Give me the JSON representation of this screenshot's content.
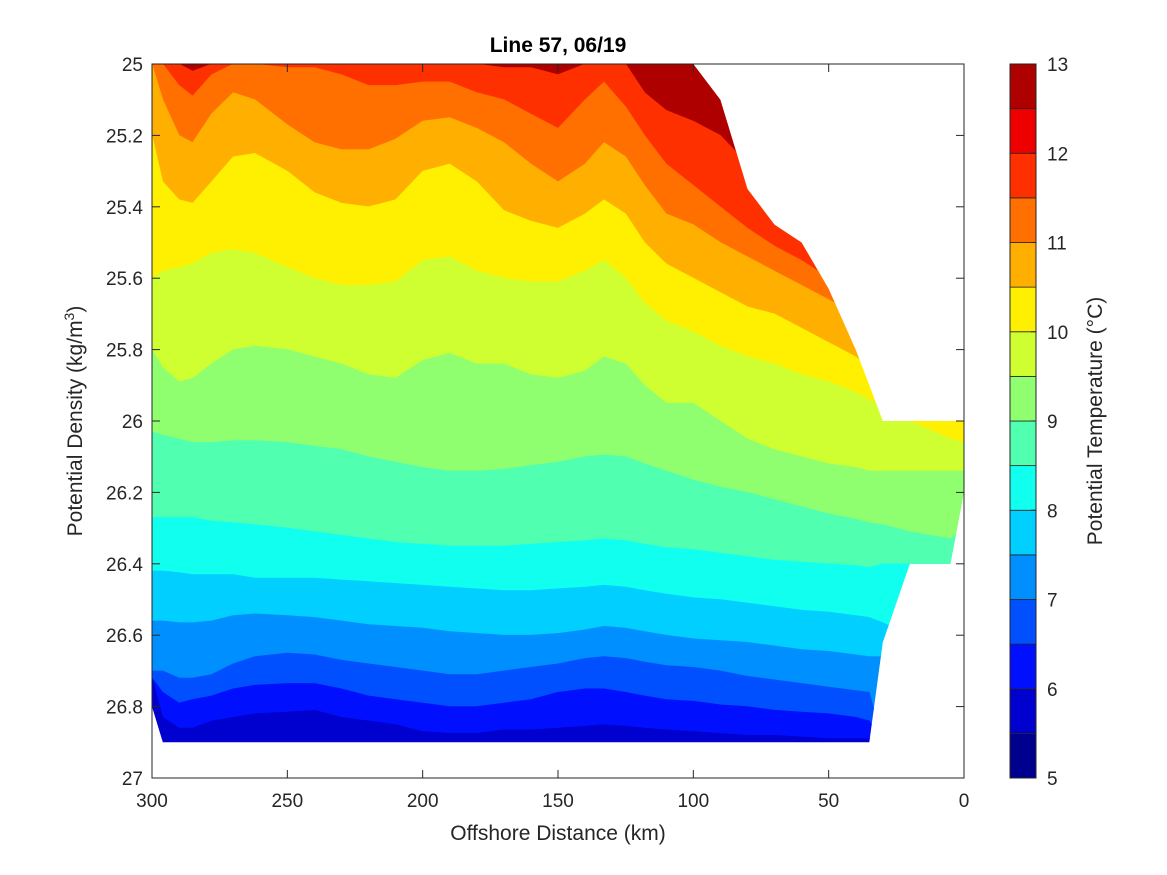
{
  "chart_data": {
    "type": "contour",
    "title": "Line 57, 06/19",
    "xlabel": "Offshore Distance (km)",
    "ylabel": "Potential Density (kg/m",
    "ylabel_sup": "3",
    "ylabel_close": ")",
    "colorbar_label": "Potential Temperature (°C)",
    "xlim": [
      300,
      0
    ],
    "x_reversed": true,
    "ylim": [
      25,
      27
    ],
    "y_reversed": true,
    "xticks": [
      300,
      250,
      200,
      150,
      100,
      50,
      0
    ],
    "xtick_labels": [
      "300",
      "250",
      "200",
      "150",
      "100",
      "50",
      "0"
    ],
    "yticks": [
      25,
      25.2,
      25.4,
      25.6,
      25.8,
      26,
      26.2,
      26.4,
      26.6,
      26.8,
      27
    ],
    "ytick_labels": [
      "25",
      "25.2",
      "25.4",
      "25.6",
      "25.8",
      "26",
      "26.2",
      "26.4",
      "26.6",
      "26.8",
      "27"
    ],
    "colorbar_ticks": [
      5,
      6,
      7,
      8,
      9,
      10,
      11,
      12,
      13
    ],
    "colorbar_tick_labels": [
      "5",
      "6",
      "7",
      "8",
      "9",
      "10",
      "11",
      "12",
      "13"
    ],
    "levels": [
      5,
      5.5,
      6,
      6.5,
      7,
      7.5,
      8,
      8.5,
      9,
      9.5,
      10,
      10.5,
      11,
      11.5,
      12,
      12.5,
      13
    ],
    "level_colors": [
      "#00008f",
      "#0000cf",
      "#0010ff",
      "#0050ff",
      "#008fff",
      "#00cfff",
      "#10ffef",
      "#50ffaf",
      "#8fff70",
      "#cfff30",
      "#ffef00",
      "#ffaf00",
      "#ff7000",
      "#ff3000",
      "#ef0000",
      "#af0000"
    ],
    "colormap": "jet",
    "grid": false,
    "data_columns": {
      "x": [
        300,
        296,
        290,
        285,
        278,
        270,
        262,
        250,
        240,
        230,
        220,
        210,
        200,
        190,
        180,
        170,
        160,
        150,
        140,
        133,
        125,
        118,
        110,
        100,
        90,
        80,
        70,
        60,
        50,
        40,
        35,
        30,
        20,
        5,
        0
      ],
      "top": [
        25.0,
        25.0,
        25.0,
        25.0,
        25.0,
        25.0,
        25.0,
        25.0,
        25.0,
        25.0,
        25.0,
        25.0,
        25.0,
        25.0,
        25.0,
        25.0,
        25.0,
        25.0,
        25.0,
        25.0,
        25.0,
        25.0,
        25.0,
        25.0,
        25.1,
        25.35,
        25.45,
        25.5,
        25.63,
        25.8,
        25.9,
        26.0,
        26.0,
        26.0,
        26.0
      ],
      "bottom": [
        26.8,
        26.9,
        26.9,
        26.9,
        26.9,
        26.9,
        26.9,
        26.9,
        26.9,
        26.9,
        26.9,
        26.9,
        26.9,
        26.9,
        26.9,
        26.9,
        26.9,
        26.9,
        26.9,
        26.9,
        26.9,
        26.9,
        26.9,
        26.9,
        26.9,
        26.9,
        26.9,
        26.9,
        26.9,
        26.9,
        26.9,
        26.62,
        26.4,
        26.4,
        26.2
      ],
      "isotherms": [
        {
          "t": 6.0,
          "sigma": [
            26.72,
            26.83,
            26.86,
            26.86,
            26.84,
            26.83,
            26.82,
            26.815,
            26.81,
            26.83,
            26.84,
            26.85,
            26.87,
            26.875,
            26.875,
            26.865,
            26.865,
            26.86,
            26.855,
            26.85,
            26.855,
            26.86,
            26.865,
            26.87,
            26.875,
            26.88,
            26.88,
            26.885,
            26.89,
            26.89,
            26.89,
            26.9,
            26.9,
            26.9,
            26.9
          ]
        },
        {
          "t": 6.5,
          "sigma": [
            26.72,
            26.76,
            26.79,
            26.78,
            26.77,
            26.75,
            26.74,
            26.735,
            26.735,
            26.75,
            26.77,
            26.78,
            26.79,
            26.8,
            26.8,
            26.79,
            26.78,
            26.76,
            26.75,
            26.75,
            26.76,
            26.77,
            26.78,
            26.785,
            26.795,
            26.8,
            26.81,
            26.815,
            26.82,
            26.83,
            26.84,
            26.9,
            26.9,
            26.9,
            26.9
          ]
        },
        {
          "t": 7.0,
          "sigma": [
            26.7,
            26.7,
            26.72,
            26.72,
            26.71,
            26.68,
            26.66,
            26.65,
            26.655,
            26.67,
            26.68,
            26.69,
            26.7,
            26.71,
            26.71,
            26.7,
            26.69,
            26.68,
            26.665,
            26.66,
            26.665,
            26.675,
            26.685,
            26.69,
            26.7,
            26.715,
            26.725,
            26.735,
            26.745,
            26.755,
            26.76,
            26.9,
            26.9,
            26.9,
            26.9
          ]
        },
        {
          "t": 7.5,
          "sigma": [
            26.56,
            26.56,
            26.565,
            26.565,
            26.56,
            26.545,
            26.54,
            26.545,
            26.55,
            26.56,
            26.57,
            26.575,
            26.58,
            26.59,
            26.595,
            26.6,
            26.6,
            26.595,
            26.585,
            26.575,
            26.58,
            26.59,
            26.6,
            26.61,
            26.615,
            26.62,
            26.63,
            26.64,
            26.645,
            26.655,
            26.66,
            26.66,
            26.9,
            26.9,
            26.9
          ]
        },
        {
          "t": 8.0,
          "sigma": [
            26.42,
            26.42,
            26.425,
            26.43,
            26.43,
            26.43,
            26.44,
            26.44,
            26.44,
            26.445,
            26.45,
            26.455,
            26.46,
            26.465,
            26.47,
            26.475,
            26.475,
            26.47,
            26.465,
            26.46,
            26.465,
            26.475,
            26.485,
            26.495,
            26.5,
            26.51,
            26.52,
            26.53,
            26.535,
            26.545,
            26.55,
            26.565,
            26.6,
            26.9,
            26.9
          ]
        },
        {
          "t": 8.5,
          "sigma": [
            26.27,
            26.27,
            26.27,
            26.27,
            26.28,
            26.285,
            26.29,
            26.3,
            26.31,
            26.32,
            26.33,
            26.34,
            26.345,
            26.35,
            26.35,
            26.35,
            26.345,
            26.34,
            26.335,
            26.33,
            26.335,
            26.345,
            26.355,
            26.36,
            26.37,
            26.38,
            26.39,
            26.395,
            26.4,
            26.405,
            26.41,
            26.4,
            26.4,
            26.4,
            26.4
          ]
        },
        {
          "t": 9.0,
          "sigma": [
            26.03,
            26.04,
            26.05,
            26.06,
            26.06,
            26.055,
            26.055,
            26.06,
            26.07,
            26.08,
            26.1,
            26.115,
            26.13,
            26.14,
            26.14,
            26.135,
            26.125,
            26.115,
            26.1,
            26.095,
            26.1,
            26.12,
            26.14,
            26.165,
            26.185,
            26.2,
            26.22,
            26.24,
            26.26,
            26.275,
            26.285,
            26.29,
            26.31,
            26.33,
            26.3
          ]
        },
        {
          "t": 9.5,
          "sigma": [
            25.8,
            25.85,
            25.89,
            25.88,
            25.84,
            25.8,
            25.79,
            25.8,
            25.82,
            25.84,
            25.87,
            25.88,
            25.83,
            25.81,
            25.84,
            25.84,
            25.87,
            25.88,
            25.86,
            25.82,
            25.84,
            25.9,
            25.95,
            25.95,
            26.0,
            26.05,
            26.08,
            26.1,
            26.12,
            26.13,
            26.14,
            26.14,
            26.14,
            26.14,
            26.14
          ]
        },
        {
          "t": 10.0,
          "sigma": [
            25.6,
            25.58,
            25.57,
            25.56,
            25.53,
            25.52,
            25.53,
            25.57,
            25.6,
            25.62,
            25.62,
            25.61,
            25.55,
            25.54,
            25.58,
            25.6,
            25.61,
            25.61,
            25.58,
            25.55,
            25.6,
            25.67,
            25.72,
            25.75,
            25.79,
            25.82,
            25.84,
            25.87,
            25.89,
            25.92,
            25.94,
            25.96,
            26.0,
            26.05,
            26.06
          ]
        },
        {
          "t": 10.5,
          "sigma": [
            25.2,
            25.33,
            25.38,
            25.39,
            25.33,
            25.26,
            25.25,
            25.3,
            25.36,
            25.39,
            25.4,
            25.38,
            25.3,
            25.28,
            25.33,
            25.41,
            25.44,
            25.46,
            25.42,
            25.38,
            25.42,
            25.5,
            25.56,
            25.6,
            25.64,
            25.68,
            25.7,
            25.74,
            25.78,
            25.82,
            25.85,
            25.9,
            26.0,
            26.0,
            26.0
          ]
        },
        {
          "t": 11.0,
          "sigma": [
            25.0,
            25.1,
            25.2,
            25.22,
            25.14,
            25.08,
            25.1,
            25.17,
            25.22,
            25.24,
            25.24,
            25.21,
            25.16,
            25.15,
            25.18,
            25.22,
            25.28,
            25.33,
            25.28,
            25.22,
            25.26,
            25.34,
            25.42,
            25.45,
            25.5,
            25.54,
            25.58,
            25.62,
            25.66,
            25.7,
            25.72,
            25.9,
            26.0,
            26.0,
            26.0
          ]
        },
        {
          "t": 11.5,
          "sigma": [
            25.0,
            25.0,
            25.06,
            25.09,
            25.03,
            25.0,
            25.0,
            25.01,
            25.01,
            25.03,
            25.06,
            25.06,
            25.05,
            25.05,
            25.08,
            25.1,
            25.14,
            25.18,
            25.1,
            25.05,
            25.12,
            25.2,
            25.28,
            25.34,
            25.4,
            25.46,
            25.51,
            25.55,
            25.6,
            25.65,
            25.68,
            25.9,
            26.0,
            26.0,
            26.0
          ]
        },
        {
          "t": 12.0,
          "sigma": [
            25.0,
            25.0,
            25.0,
            25.02,
            25.0,
            25.0,
            25.0,
            25.0,
            25.0,
            25.0,
            25.0,
            25.0,
            25.0,
            25.0,
            25.0,
            25.01,
            25.01,
            25.03,
            25.0,
            25.0,
            25.0,
            25.08,
            25.13,
            25.16,
            25.2,
            25.28,
            25.38,
            25.46,
            25.55,
            25.62,
            25.66,
            25.9,
            26.0,
            26.0,
            26.0
          ]
        }
      ]
    }
  }
}
